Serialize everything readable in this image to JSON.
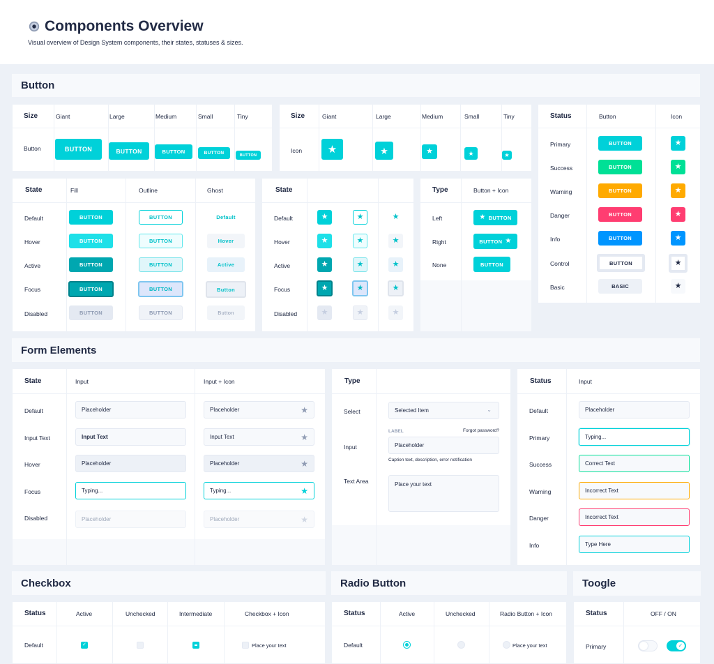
{
  "header": {
    "title": "Components Overview",
    "subtitle": "Visual overview of Design System components, their states, statuses & sizes."
  },
  "sections": {
    "button": "Button",
    "form": "Form Elements",
    "checkbox": "Checkbox",
    "radio": "Radio Button",
    "toggle": "Toogle"
  },
  "size_card": {
    "head": "Size",
    "cols": [
      "Giant",
      "Large",
      "Medium",
      "Small",
      "Tiny"
    ],
    "row_button": "Button",
    "row_icon": "Icon",
    "button_label": "BUTTON"
  },
  "state_card": {
    "head": "State",
    "cols": [
      "Fill",
      "Outline",
      "Ghost"
    ],
    "rows": [
      "Default",
      "Hover",
      "Active",
      "Focus",
      "Disabled"
    ],
    "btn": "BUTTON",
    "ghost": [
      "Default",
      "Hover",
      "Active",
      "Button",
      "Button"
    ]
  },
  "type_card": {
    "head": "Type",
    "col": "Button + Icon",
    "rows": [
      "Left",
      "Right",
      "None"
    ],
    "btn": "BUTTON"
  },
  "status_card": {
    "head": "Status",
    "cols": [
      "Button",
      "Icon"
    ],
    "rows": [
      "Primary",
      "Success",
      "Warning",
      "Danger",
      "Info",
      "Control",
      "Basic"
    ],
    "btns": [
      "BUTTON",
      "BUTTON",
      "BUTTON",
      "BUTTON",
      "BUTTON",
      "BUTTON",
      "BASIC"
    ]
  },
  "colors": {
    "primary": "#00d1d9",
    "success": "#00e096",
    "warning": "#ffaa00",
    "danger": "#ff3d71",
    "info": "#0095ff",
    "basic": "#edf1f7"
  },
  "form_state": {
    "head": "State",
    "cols": [
      "Input",
      "Input + Icon"
    ],
    "rows": [
      "Default",
      "Input Text",
      "Hover",
      "Focus",
      "Disabled"
    ],
    "values": [
      "Placeholder",
      "Input Text",
      "Placeholder",
      "Typing...",
      "Placeholder"
    ]
  },
  "form_type": {
    "head": "Type",
    "rows": [
      "Select",
      "Input",
      "Text Area"
    ],
    "select_value": "Selected Item",
    "input_label": "LABEL",
    "forgot": "Forgot password?",
    "input_placeholder": "Placeholder",
    "caption": "Caption text, description, error notification",
    "textarea": "Place your text"
  },
  "form_status": {
    "head": "Status",
    "col": "Input",
    "rows": [
      "Default",
      "Primary",
      "Success",
      "Warning",
      "Danger",
      "Info"
    ],
    "values": [
      "Placeholder",
      "Typing...",
      "Correct Text",
      "Incorrect Text",
      "Incorrect Text",
      "Type Here"
    ]
  },
  "checkbox": {
    "head": "Status",
    "cols": [
      "Active",
      "Unchecked",
      "Intermediate",
      "Checkbox + Icon"
    ],
    "row": "Default",
    "text": "Place your text"
  },
  "radio": {
    "head": "Status",
    "cols": [
      "Active",
      "Unchecked",
      "Radio Button + Icon"
    ],
    "row": "Default",
    "text": "Place your text"
  },
  "toggle": {
    "head": "Status",
    "col": "OFF / ON",
    "row": "Primary"
  }
}
